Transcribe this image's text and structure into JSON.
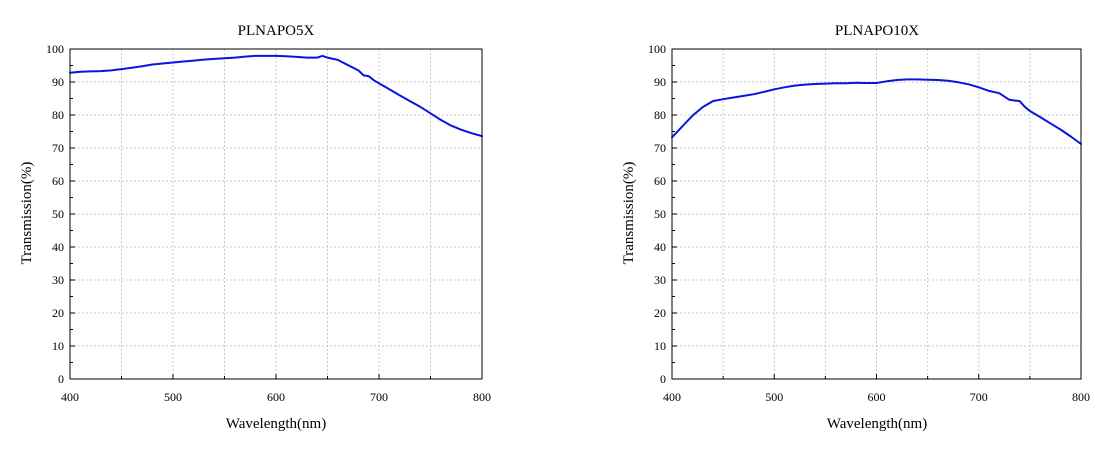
{
  "chart_data": [
    {
      "type": "line",
      "title": "PLNAPO5X",
      "xlabel": "Wavelength(nm)",
      "ylabel": "Transmission(%)",
      "xlim": [
        400,
        800
      ],
      "ylim": [
        0,
        100
      ],
      "xticks": [
        400,
        500,
        600,
        700,
        800
      ],
      "yticks": [
        0,
        10,
        20,
        30,
        40,
        50,
        60,
        70,
        80,
        90,
        100
      ],
      "grid": true,
      "series": [
        {
          "color": "#0a14e0",
          "x": [
            400,
            410,
            420,
            430,
            440,
            450,
            460,
            470,
            480,
            490,
            500,
            510,
            520,
            530,
            540,
            550,
            560,
            570,
            580,
            590,
            600,
            610,
            620,
            630,
            640,
            645,
            650,
            660,
            670,
            680,
            685,
            690,
            695,
            700,
            710,
            720,
            730,
            740,
            750,
            760,
            770,
            780,
            790,
            800
          ],
          "y": [
            92.8,
            93.1,
            93.2,
            93.3,
            93.5,
            93.9,
            94.3,
            94.8,
            95.3,
            95.6,
            95.9,
            96.2,
            96.5,
            96.8,
            97.0,
            97.2,
            97.4,
            97.7,
            97.9,
            97.9,
            97.9,
            97.8,
            97.6,
            97.4,
            97.4,
            97.9,
            97.4,
            96.7,
            95.1,
            93.5,
            92.0,
            91.8,
            90.5,
            89.6,
            87.8,
            86.0,
            84.2,
            82.5,
            80.5,
            78.5,
            76.8,
            75.5,
            74.5,
            73.6
          ]
        }
      ]
    },
    {
      "type": "line",
      "title": "PLNAPO10X",
      "xlabel": "Wavelength(nm)",
      "ylabel": "Transmission(%)",
      "xlim": [
        400,
        800
      ],
      "ylim": [
        0,
        100
      ],
      "xticks": [
        400,
        500,
        600,
        700,
        800
      ],
      "yticks": [
        0,
        10,
        20,
        30,
        40,
        50,
        60,
        70,
        80,
        90,
        100
      ],
      "grid": true,
      "series": [
        {
          "color": "#0a14e0",
          "x": [
            400,
            410,
            420,
            430,
            440,
            450,
            460,
            470,
            480,
            490,
            500,
            510,
            520,
            530,
            540,
            550,
            560,
            570,
            580,
            590,
            600,
            610,
            620,
            630,
            640,
            650,
            660,
            670,
            680,
            690,
            700,
            710,
            720,
            730,
            735,
            740,
            745,
            750,
            760,
            770,
            780,
            790,
            800
          ],
          "y": [
            73.2,
            76.5,
            79.8,
            82.4,
            84.2,
            84.8,
            85.3,
            85.8,
            86.3,
            87.0,
            87.8,
            88.4,
            88.9,
            89.2,
            89.4,
            89.5,
            89.6,
            89.6,
            89.8,
            89.7,
            89.7,
            90.2,
            90.6,
            90.8,
            90.8,
            90.7,
            90.6,
            90.4,
            89.9,
            89.3,
            88.4,
            87.3,
            86.6,
            84.6,
            84.4,
            84.2,
            82.5,
            81.2,
            79.4,
            77.5,
            75.6,
            73.5,
            71.2
          ]
        }
      ]
    }
  ]
}
